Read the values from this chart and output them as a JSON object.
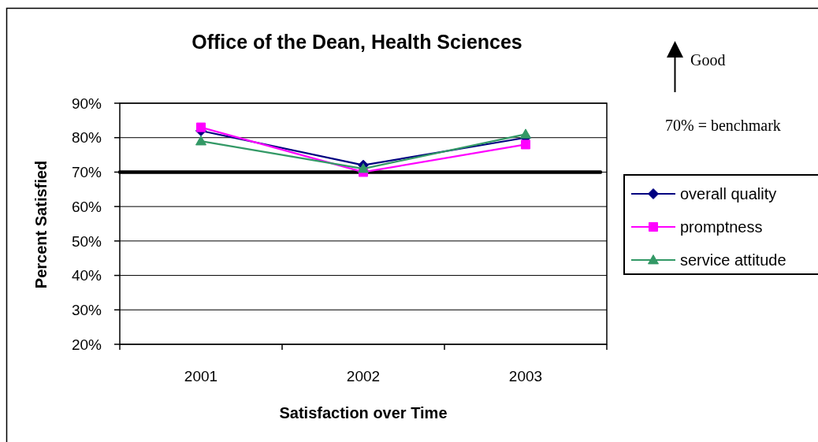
{
  "chart_data": {
    "type": "line",
    "title": "Office of the Dean, Health Sciences",
    "xlabel": "Satisfaction over Time",
    "ylabel": "Percent Satisfied",
    "categories": [
      "2001",
      "2002",
      "2003"
    ],
    "series": [
      {
        "name": "overall quality",
        "color": "#000080",
        "marker": "diamond",
        "values": [
          82,
          72,
          80
        ]
      },
      {
        "name": "promptness",
        "color": "#ff00ff",
        "marker": "square",
        "values": [
          83,
          70,
          78
        ]
      },
      {
        "name": "service attitude",
        "color": "#339966",
        "marker": "triangle",
        "values": [
          79,
          71,
          81
        ]
      }
    ],
    "ylim": [
      20,
      90
    ],
    "yticks": [
      {
        "value": 20,
        "label": "20%"
      },
      {
        "value": 30,
        "label": "30%"
      },
      {
        "value": 40,
        "label": "40%"
      },
      {
        "value": 50,
        "label": "50%"
      },
      {
        "value": 60,
        "label": "60%"
      },
      {
        "value": 70,
        "label": "70%"
      },
      {
        "value": 80,
        "label": "80%"
      },
      {
        "value": 90,
        "label": "90%"
      }
    ],
    "grid": "y",
    "legend": "right",
    "line_style": "solid",
    "ref_lines": [
      {
        "axis": "y",
        "value": 70,
        "color": "#000000"
      }
    ],
    "annotations": [
      "Good",
      "70% = benchmark"
    ]
  }
}
